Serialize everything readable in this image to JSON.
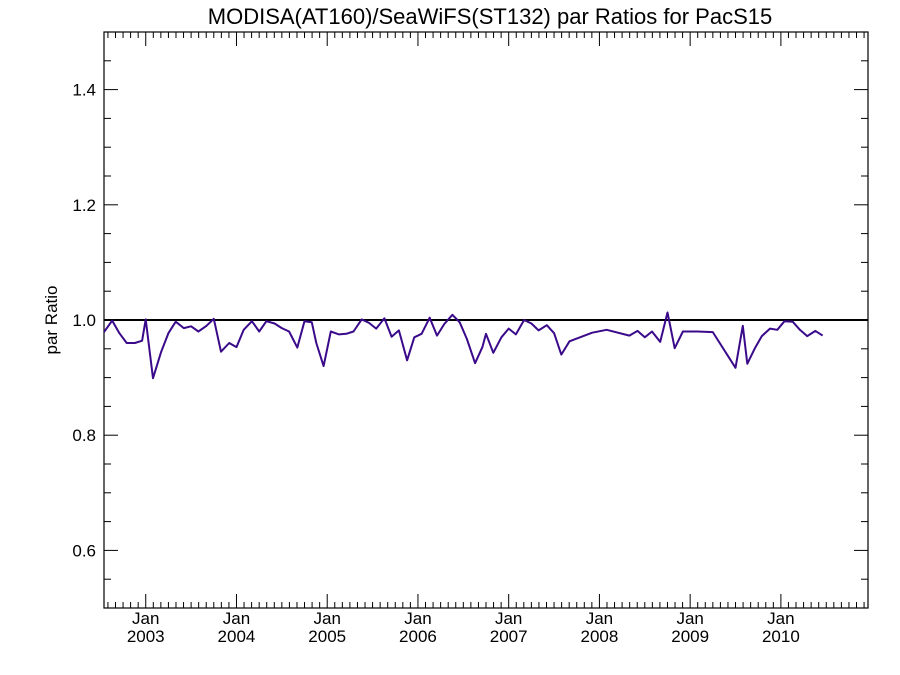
{
  "chart_data": {
    "type": "line",
    "title": "MODISA(AT160)/SeaWiFS(ST132)  par Ratios for PacS15",
    "xlabel": "",
    "ylabel": "par Ratio",
    "xlim": [
      2002.54,
      2010.96
    ],
    "ylim": [
      0.5,
      1.5
    ],
    "y_ticks": [
      "0.6",
      "0.8",
      "1.0",
      "1.2",
      "1.4"
    ],
    "x_ticks": [
      {
        "month": "Jan",
        "year": "2003"
      },
      {
        "month": "Jan",
        "year": "2004"
      },
      {
        "month": "Jan",
        "year": "2005"
      },
      {
        "month": "Jan",
        "year": "2006"
      },
      {
        "month": "Jan",
        "year": "2007"
      },
      {
        "month": "Jan",
        "year": "2008"
      },
      {
        "month": "Jan",
        "year": "2009"
      },
      {
        "month": "Jan",
        "year": "2010"
      }
    ],
    "grid": false,
    "reference_line": {
      "y": 1.0,
      "color": "#000000"
    },
    "series": [
      {
        "color": "#3a0a8a",
        "points": [
          [
            2002.54,
            0.979
          ],
          [
            2002.63,
            0.999
          ],
          [
            2002.71,
            0.977
          ],
          [
            2002.79,
            0.96
          ],
          [
            2002.88,
            0.96
          ],
          [
            2002.96,
            0.964
          ],
          [
            2003.0,
            1.001
          ],
          [
            2003.08,
            0.899
          ],
          [
            2003.17,
            0.945
          ],
          [
            2003.25,
            0.977
          ],
          [
            2003.33,
            0.997
          ],
          [
            2003.42,
            0.986
          ],
          [
            2003.5,
            0.989
          ],
          [
            2003.58,
            0.98
          ],
          [
            2003.67,
            0.99
          ],
          [
            2003.75,
            1.002
          ],
          [
            2003.83,
            0.945
          ],
          [
            2003.92,
            0.96
          ],
          [
            2004.0,
            0.953
          ],
          [
            2004.08,
            0.983
          ],
          [
            2004.17,
            0.998
          ],
          [
            2004.25,
            0.98
          ],
          [
            2004.33,
            0.998
          ],
          [
            2004.42,
            0.994
          ],
          [
            2004.5,
            0.986
          ],
          [
            2004.58,
            0.98
          ],
          [
            2004.67,
            0.952
          ],
          [
            2004.75,
            0.998
          ],
          [
            2004.83,
            0.996
          ],
          [
            2004.88,
            0.96
          ],
          [
            2004.96,
            0.92
          ],
          [
            2005.04,
            0.98
          ],
          [
            2005.13,
            0.975
          ],
          [
            2005.21,
            0.976
          ],
          [
            2005.29,
            0.98
          ],
          [
            2005.38,
            1.001
          ],
          [
            2005.46,
            0.995
          ],
          [
            2005.54,
            0.985
          ],
          [
            2005.63,
            1.003
          ],
          [
            2005.71,
            0.971
          ],
          [
            2005.79,
            0.982
          ],
          [
            2005.88,
            0.93
          ],
          [
            2005.96,
            0.97
          ],
          [
            2006.04,
            0.976
          ],
          [
            2006.13,
            1.004
          ],
          [
            2006.21,
            0.973
          ],
          [
            2006.29,
            0.993
          ],
          [
            2006.38,
            1.009
          ],
          [
            2006.46,
            0.996
          ],
          [
            2006.54,
            0.967
          ],
          [
            2006.63,
            0.925
          ],
          [
            2006.71,
            0.953
          ],
          [
            2006.75,
            0.976
          ],
          [
            2006.83,
            0.943
          ],
          [
            2006.92,
            0.97
          ],
          [
            2007.0,
            0.985
          ],
          [
            2007.08,
            0.975
          ],
          [
            2007.17,
            1.0
          ],
          [
            2007.25,
            0.994
          ],
          [
            2007.33,
            0.982
          ],
          [
            2007.42,
            0.991
          ],
          [
            2007.5,
            0.977
          ],
          [
            2007.58,
            0.94
          ],
          [
            2007.67,
            0.963
          ],
          [
            2007.92,
            0.978
          ],
          [
            2008.08,
            0.983
          ],
          [
            2008.33,
            0.973
          ],
          [
            2008.42,
            0.981
          ],
          [
            2008.5,
            0.97
          ],
          [
            2008.58,
            0.98
          ],
          [
            2008.67,
            0.962
          ],
          [
            2008.75,
            1.013
          ],
          [
            2008.83,
            0.951
          ],
          [
            2008.92,
            0.98
          ],
          [
            2009.08,
            0.98
          ],
          [
            2009.25,
            0.979
          ],
          [
            2009.5,
            0.917
          ],
          [
            2009.58,
            0.99
          ],
          [
            2009.63,
            0.924
          ],
          [
            2009.71,
            0.95
          ],
          [
            2009.79,
            0.972
          ],
          [
            2009.88,
            0.985
          ],
          [
            2009.96,
            0.983
          ],
          [
            2010.04,
            0.998
          ],
          [
            2010.13,
            0.997
          ],
          [
            2010.21,
            0.983
          ],
          [
            2010.29,
            0.972
          ],
          [
            2010.38,
            0.981
          ],
          [
            2010.46,
            0.973
          ]
        ]
      }
    ]
  }
}
